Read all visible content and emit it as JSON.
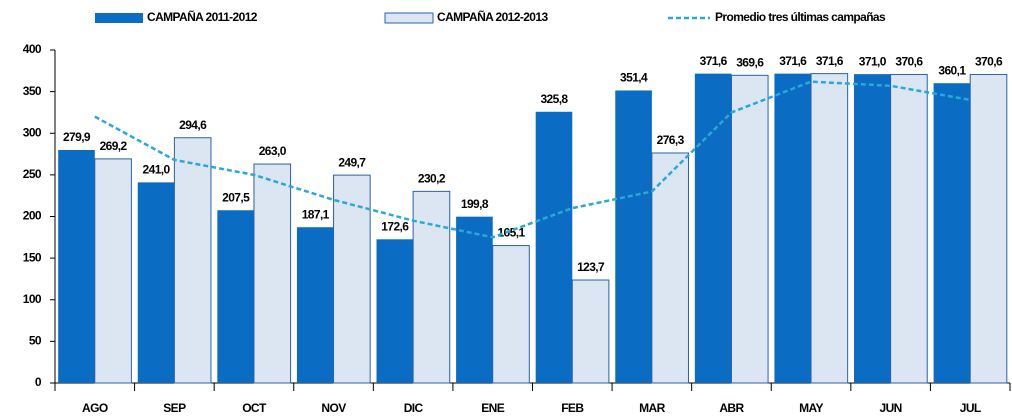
{
  "chart_data": {
    "type": "bar",
    "categories": [
      "AGO",
      "SEP",
      "OCT",
      "NOV",
      "DIC",
      "ENE",
      "FEB",
      "MAR",
      "ABR",
      "MAY",
      "JUN",
      "JUL"
    ],
    "series": [
      {
        "name": "CAMPAÑA 2011-2012",
        "color": "#0a6cc2",
        "values": [
          279.9,
          241.0,
          207.5,
          187.1,
          172.6,
          199.8,
          325.8,
          351.4,
          371.6,
          371.6,
          371.0,
          360.1
        ],
        "value_labels": [
          "279,9",
          "241,0",
          "207,5",
          "187,1",
          "172,6",
          "199,8",
          "325,8",
          "351,4",
          "371,6",
          "371,6",
          "371,0",
          "360,1"
        ]
      },
      {
        "name": "CAMPAÑA 2012-2013",
        "color": "#dce6f2",
        "values": [
          269.2,
          294.6,
          263.0,
          249.7,
          230.2,
          165.1,
          123.7,
          276.3,
          369.6,
          371.6,
          370.6,
          370.6
        ],
        "value_labels": [
          "269,2",
          "294,6",
          "263,0",
          "249,7",
          "230,2",
          "165,1",
          "123,7",
          "276,3",
          "369,6",
          "371,6",
          "370,6",
          "370,6"
        ]
      },
      {
        "name": "Promedio tres últimas campañas",
        "type": "line",
        "color": "#2aa8d8",
        "values": [
          320,
          268,
          250,
          220,
          195,
          175,
          210,
          230,
          325,
          362,
          357,
          340
        ]
      }
    ],
    "ylim": [
      0,
      400
    ],
    "yticks": [
      0,
      50,
      100,
      150,
      200,
      250,
      300,
      350,
      400
    ],
    "legend": "top"
  }
}
